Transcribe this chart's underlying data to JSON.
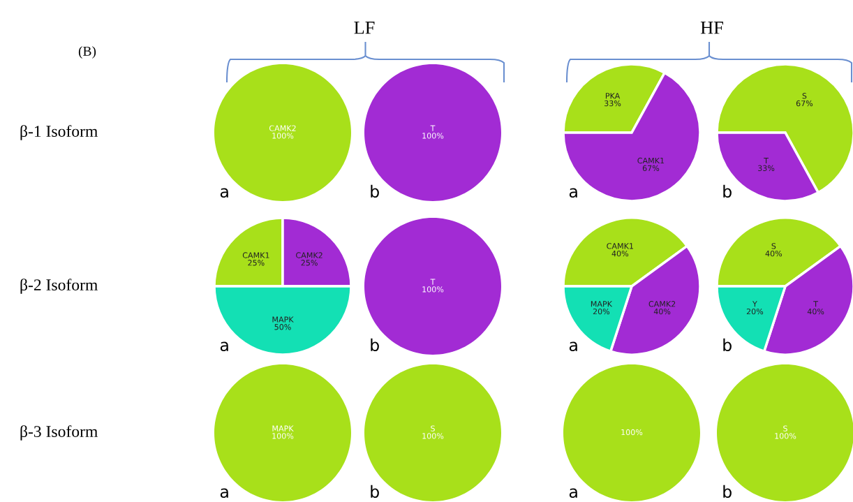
{
  "chart_data": [
    {
      "type": "other",
      "annotations": [
        "(B)",
        "LF",
        "HF",
        "β-1 Isoform",
        "β-2 Isoform",
        "β-3 Isoform"
      ]
    },
    {
      "type": "pie",
      "categories": [
        "CAMK2"
      ],
      "values": [
        100
      ],
      "value_labels": [
        "100%"
      ],
      "colors": [
        "#a8e01a"
      ],
      "annotations": [
        "a"
      ]
    },
    {
      "type": "pie",
      "categories": [
        "T"
      ],
      "values": [
        100
      ],
      "value_labels": [
        "100%"
      ],
      "colors": [
        "#a22bd4"
      ],
      "annotations": [
        "b"
      ]
    },
    {
      "type": "pie",
      "categories": [
        "PKA",
        "CAMK1"
      ],
      "values": [
        33,
        67
      ],
      "value_labels": [
        "33%",
        "67%"
      ],
      "colors": [
        "#a8e01a",
        "#a22bd4"
      ],
      "annotations": [
        "a"
      ]
    },
    {
      "type": "pie",
      "categories": [
        "S",
        "T"
      ],
      "values": [
        67,
        33
      ],
      "value_labels": [
        "67%",
        "33%"
      ],
      "colors": [
        "#a8e01a",
        "#a22bd4"
      ],
      "annotations": [
        "b"
      ]
    },
    {
      "type": "pie",
      "categories": [
        "CAMK1",
        "CAMK2",
        "MAPK"
      ],
      "values": [
        25,
        25,
        50
      ],
      "value_labels": [
        "25%",
        "25%",
        "50%"
      ],
      "colors": [
        "#a8e01a",
        "#a22bd4",
        "#13e0b4"
      ],
      "annotations": [
        "a"
      ]
    },
    {
      "type": "pie",
      "categories": [
        "T"
      ],
      "values": [
        100
      ],
      "value_labels": [
        "100%"
      ],
      "colors": [
        "#a22bd4"
      ],
      "annotations": [
        "b"
      ]
    },
    {
      "type": "pie",
      "categories": [
        "CAMK1",
        "CAMK2",
        "MAPK"
      ],
      "values": [
        40,
        40,
        20
      ],
      "value_labels": [
        "40%",
        "40%",
        "20%"
      ],
      "colors": [
        "#a8e01a",
        "#a22bd4",
        "#13e0b4"
      ],
      "annotations": [
        "a"
      ]
    },
    {
      "type": "pie",
      "categories": [
        "S",
        "T",
        "Y"
      ],
      "values": [
        40,
        40,
        20
      ],
      "value_labels": [
        "40%",
        "40%",
        "20%"
      ],
      "colors": [
        "#a8e01a",
        "#a22bd4",
        "#13e0b4"
      ],
      "annotations": [
        "b"
      ]
    },
    {
      "type": "pie",
      "categories": [
        "MAPK"
      ],
      "values": [
        100
      ],
      "value_labels": [
        "100%"
      ],
      "colors": [
        "#a8e01a"
      ],
      "annotations": [
        "a"
      ]
    },
    {
      "type": "pie",
      "categories": [
        "S"
      ],
      "values": [
        100
      ],
      "value_labels": [
        "100%"
      ],
      "colors": [
        "#a8e01a"
      ],
      "annotations": [
        "b"
      ]
    },
    {
      "type": "pie",
      "categories": [
        null
      ],
      "values": [
        100
      ],
      "value_labels": [
        "100%"
      ],
      "colors": [
        "#a8e01a"
      ],
      "annotations": [
        "a"
      ]
    },
    {
      "type": "pie",
      "categories": [
        "S"
      ],
      "values": [
        100
      ],
      "value_labels": [
        "100%"
      ],
      "colors": [
        "#a8e01a"
      ],
      "annotations": [
        "b"
      ]
    }
  ]
}
